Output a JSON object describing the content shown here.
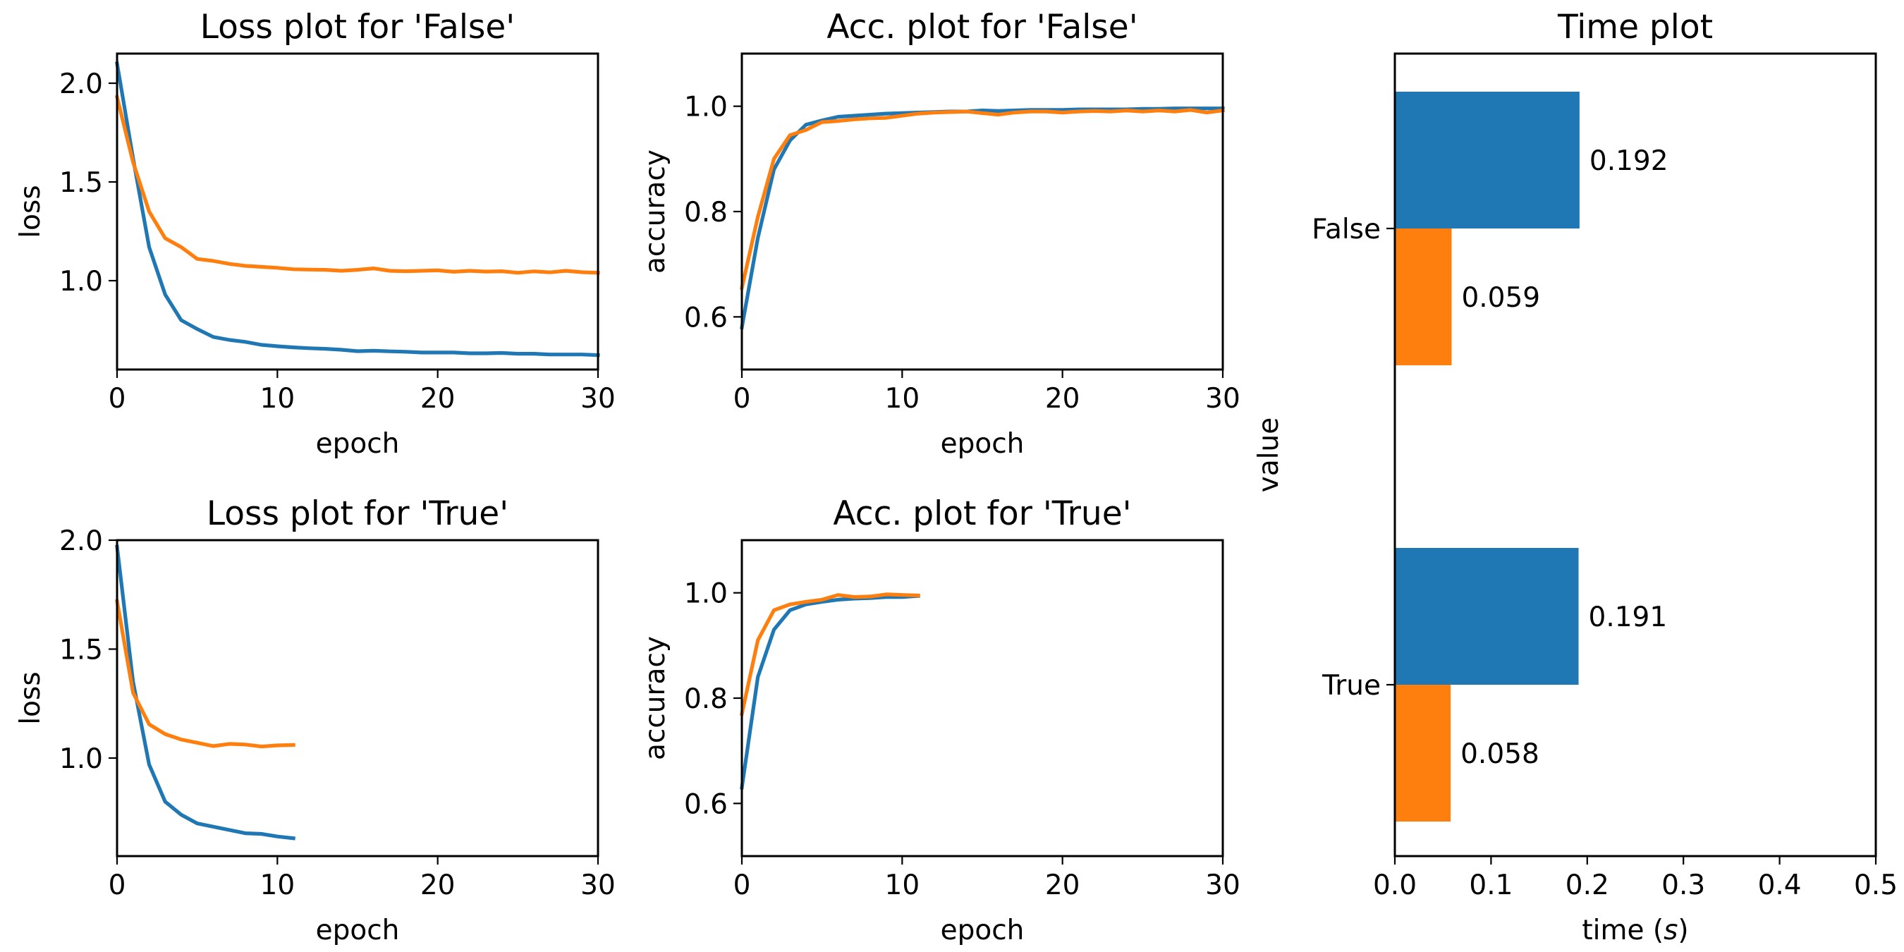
{
  "colors": {
    "blue": "#1f77b4",
    "orange": "#ff7f0e"
  },
  "chart_data": [
    {
      "id": "loss_false",
      "type": "line",
      "title": "Loss plot for 'False'",
      "xlabel": "epoch",
      "ylabel": "loss",
      "xlim": [
        0,
        30
      ],
      "ylim": [
        0.55,
        2.15
      ],
      "xticks": [
        0,
        10,
        20,
        30
      ],
      "yticks": [
        1.0,
        1.5,
        2.0
      ],
      "yticklabels": [
        "1.0",
        "1.5",
        "2.0"
      ],
      "grid": false,
      "series": [
        {
          "color": "#1f77b4",
          "x": [
            0,
            1,
            2,
            3,
            4,
            5,
            6,
            7,
            8,
            9,
            10,
            11,
            12,
            13,
            14,
            15,
            16,
            17,
            18,
            19,
            20,
            21,
            22,
            23,
            24,
            25,
            26,
            27,
            28,
            29,
            30
          ],
          "values": [
            2.1,
            1.62,
            1.17,
            0.93,
            0.8,
            0.755,
            0.715,
            0.7,
            0.69,
            0.675,
            0.668,
            0.662,
            0.658,
            0.655,
            0.65,
            0.643,
            0.645,
            0.642,
            0.64,
            0.636,
            0.636,
            0.636,
            0.632,
            0.632,
            0.634,
            0.63,
            0.63,
            0.626,
            0.626,
            0.626,
            0.623
          ]
        },
        {
          "color": "#ff7f0e",
          "x": [
            0,
            1,
            2,
            3,
            4,
            5,
            6,
            7,
            8,
            9,
            10,
            11,
            12,
            13,
            14,
            15,
            16,
            17,
            18,
            19,
            20,
            21,
            22,
            23,
            24,
            25,
            26,
            27,
            28,
            29,
            30
          ],
          "values": [
            1.93,
            1.6,
            1.35,
            1.215,
            1.17,
            1.11,
            1.1,
            1.085,
            1.075,
            1.07,
            1.065,
            1.058,
            1.056,
            1.055,
            1.05,
            1.055,
            1.062,
            1.05,
            1.048,
            1.05,
            1.052,
            1.045,
            1.05,
            1.046,
            1.048,
            1.04,
            1.047,
            1.042,
            1.05,
            1.043,
            1.04
          ]
        }
      ]
    },
    {
      "id": "acc_false",
      "type": "line",
      "title": "Acc. plot for 'False'",
      "xlabel": "epoch",
      "ylabel": "accuracy",
      "xlim": [
        0,
        30
      ],
      "ylim": [
        0.5,
        1.1
      ],
      "xticks": [
        0,
        10,
        20,
        30
      ],
      "yticks": [
        0.6,
        0.8,
        1.0
      ],
      "yticklabels": [
        "0.6",
        "0.8",
        "1.0"
      ],
      "grid": false,
      "series": [
        {
          "color": "#1f77b4",
          "x": [
            0,
            1,
            2,
            3,
            4,
            5,
            6,
            7,
            8,
            9,
            10,
            11,
            12,
            13,
            14,
            15,
            16,
            17,
            18,
            19,
            20,
            21,
            22,
            23,
            24,
            25,
            26,
            27,
            28,
            29,
            30
          ],
          "values": [
            0.58,
            0.75,
            0.88,
            0.935,
            0.965,
            0.973,
            0.98,
            0.982,
            0.984,
            0.986,
            0.987,
            0.988,
            0.989,
            0.99,
            0.99,
            0.992,
            0.991,
            0.992,
            0.993,
            0.993,
            0.993,
            0.994,
            0.994,
            0.994,
            0.994,
            0.995,
            0.995,
            0.996,
            0.996,
            0.996,
            0.996
          ]
        },
        {
          "color": "#ff7f0e",
          "x": [
            0,
            1,
            2,
            3,
            4,
            5,
            6,
            7,
            8,
            9,
            10,
            11,
            12,
            13,
            14,
            15,
            16,
            17,
            18,
            19,
            20,
            21,
            22,
            23,
            24,
            25,
            26,
            27,
            28,
            29,
            30
          ],
          "values": [
            0.655,
            0.79,
            0.9,
            0.945,
            0.955,
            0.97,
            0.972,
            0.975,
            0.977,
            0.978,
            0.982,
            0.986,
            0.988,
            0.989,
            0.99,
            0.987,
            0.984,
            0.988,
            0.99,
            0.99,
            0.988,
            0.99,
            0.991,
            0.99,
            0.992,
            0.99,
            0.992,
            0.99,
            0.993,
            0.988,
            0.992
          ]
        }
      ]
    },
    {
      "id": "loss_true",
      "type": "line",
      "title": "Loss plot for 'True'",
      "xlabel": "epoch",
      "ylabel": "loss",
      "xlim": [
        0,
        30
      ],
      "ylim": [
        0.55,
        2.0
      ],
      "xticks": [
        0,
        10,
        20,
        30
      ],
      "yticks": [
        1.0,
        1.5,
        2.0
      ],
      "yticklabels": [
        "1.0",
        "1.5",
        "2.0"
      ],
      "grid": false,
      "series": [
        {
          "color": "#1f77b4",
          "x": [
            0,
            1,
            2,
            3,
            4,
            5,
            6,
            7,
            8,
            9,
            10,
            11
          ],
          "values": [
            1.97,
            1.35,
            0.97,
            0.8,
            0.74,
            0.7,
            0.685,
            0.67,
            0.655,
            0.652,
            0.64,
            0.632
          ]
        },
        {
          "color": "#ff7f0e",
          "x": [
            0,
            1,
            2,
            3,
            4,
            5,
            6,
            7,
            8,
            9,
            10,
            11
          ],
          "values": [
            1.72,
            1.3,
            1.155,
            1.11,
            1.085,
            1.07,
            1.055,
            1.065,
            1.062,
            1.053,
            1.058,
            1.06
          ]
        }
      ]
    },
    {
      "id": "acc_true",
      "type": "line",
      "title": "Acc. plot for 'True'",
      "xlabel": "epoch",
      "ylabel": "accuracy",
      "xlim": [
        0,
        30
      ],
      "ylim": [
        0.5,
        1.1
      ],
      "xticks": [
        0,
        10,
        20,
        30
      ],
      "yticks": [
        0.6,
        0.8,
        1.0
      ],
      "yticklabels": [
        "0.6",
        "0.8",
        "1.0"
      ],
      "grid": false,
      "series": [
        {
          "color": "#1f77b4",
          "x": [
            0,
            1,
            2,
            3,
            4,
            5,
            6,
            7,
            8,
            9,
            10,
            11
          ],
          "values": [
            0.63,
            0.84,
            0.93,
            0.967,
            0.978,
            0.983,
            0.987,
            0.989,
            0.99,
            0.992,
            0.992,
            0.994
          ]
        },
        {
          "color": "#ff7f0e",
          "x": [
            0,
            1,
            2,
            3,
            4,
            5,
            6,
            7,
            8,
            9,
            10,
            11
          ],
          "values": [
            0.77,
            0.91,
            0.967,
            0.978,
            0.983,
            0.987,
            0.996,
            0.992,
            0.993,
            0.997,
            0.996,
            0.995
          ]
        }
      ]
    },
    {
      "id": "time",
      "type": "bar",
      "orientation": "horizontal",
      "title": "Time plot",
      "xlabel": "time (s)",
      "ylabel": "value",
      "xlim": [
        0,
        0.5
      ],
      "xticks": [
        0.0,
        0.1,
        0.2,
        0.3,
        0.4,
        0.5
      ],
      "xticklabels": [
        "0.0",
        "0.1",
        "0.2",
        "0.3",
        "0.4",
        "0.5"
      ],
      "categories": [
        "False",
        "True"
      ],
      "grid": false,
      "series": [
        {
          "color": "#1f77b4",
          "values": [
            0.192,
            0.191
          ],
          "labels": [
            "0.192",
            "0.191"
          ]
        },
        {
          "color": "#ff7f0e",
          "values": [
            0.059,
            0.058
          ],
          "labels": [
            "0.059",
            "0.058"
          ]
        }
      ]
    }
  ]
}
